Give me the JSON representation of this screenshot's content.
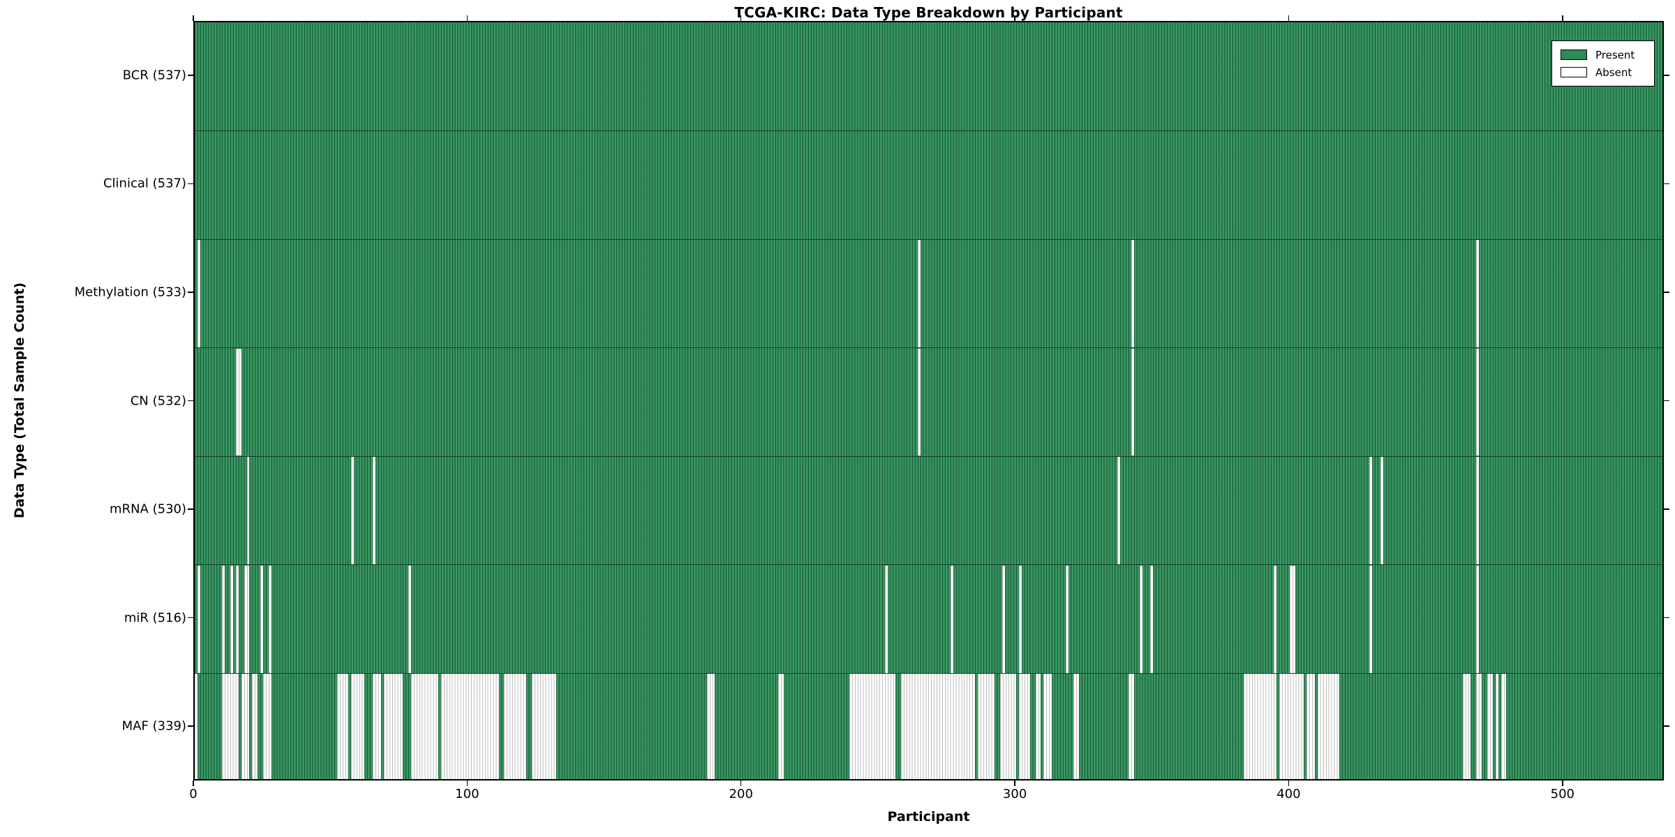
{
  "chart_data": {
    "type": "heatmap",
    "title": "TCGA-KIRC: Data Type Breakdown by Participant",
    "xlabel": "Participant",
    "ylabel": "Data Type (Total Sample Count)",
    "n_participants": 537,
    "x_ticks": [
      0,
      100,
      200,
      300,
      400,
      500
    ],
    "grid": "horizontal-row-separators",
    "legend_position": "upper right",
    "legend": [
      {
        "label": "Present",
        "color": "#2e8b57"
      },
      {
        "label": "Absent",
        "color": "#ffffff"
      }
    ],
    "cell_present_color": "#2e8b57",
    "cell_absent_color": "#ffffff",
    "rows": [
      {
        "label": "BCR (537)",
        "data_type": "BCR",
        "present_count": 537,
        "absent_ranges": []
      },
      {
        "label": "Clinical (537)",
        "data_type": "Clinical",
        "present_count": 537,
        "absent_ranges": []
      },
      {
        "label": "Methylation (533)",
        "data_type": "Methylation",
        "present_count": 533,
        "absent_ranges": [
          [
            1,
            1
          ],
          [
            264,
            264
          ],
          [
            342,
            342
          ],
          [
            468,
            468
          ]
        ]
      },
      {
        "label": "CN (532)",
        "data_type": "CN",
        "present_count": 532,
        "absent_ranges": [
          [
            15,
            16
          ],
          [
            264,
            264
          ],
          [
            342,
            342
          ],
          [
            468,
            468
          ]
        ]
      },
      {
        "label": "mRNA (530)",
        "data_type": "mRNA",
        "present_count": 530,
        "absent_ranges": [
          [
            19,
            19
          ],
          [
            57,
            57
          ],
          [
            65,
            65
          ],
          [
            337,
            337
          ],
          [
            429,
            429
          ],
          [
            433,
            433
          ],
          [
            468,
            468
          ]
        ]
      },
      {
        "label": "miR (516)",
        "data_type": "miR",
        "present_count": 516,
        "absent_ranges": [
          [
            1,
            1
          ],
          [
            10,
            10
          ],
          [
            13,
            13
          ],
          [
            15,
            15
          ],
          [
            18,
            18
          ],
          [
            19,
            19
          ],
          [
            24,
            24
          ],
          [
            27,
            27
          ],
          [
            78,
            78
          ],
          [
            252,
            252
          ],
          [
            276,
            276
          ],
          [
            295,
            295
          ],
          [
            301,
            301
          ],
          [
            318,
            318
          ],
          [
            345,
            345
          ],
          [
            349,
            349
          ],
          [
            394,
            394
          ],
          [
            400,
            401
          ],
          [
            429,
            429
          ],
          [
            468,
            468
          ]
        ]
      },
      {
        "label": "MAF (339)",
        "data_type": "MAF",
        "present_count": 339,
        "absent_ranges": [
          [
            0,
            0
          ],
          [
            10,
            15
          ],
          [
            17,
            19
          ],
          [
            21,
            22
          ],
          [
            25,
            27
          ],
          [
            52,
            55
          ],
          [
            57,
            61
          ],
          [
            65,
            67
          ],
          [
            69,
            75
          ],
          [
            79,
            88
          ],
          [
            90,
            110
          ],
          [
            113,
            120
          ],
          [
            123,
            131
          ],
          [
            187,
            189
          ],
          [
            213,
            214
          ],
          [
            239,
            255
          ],
          [
            258,
            284
          ],
          [
            286,
            291
          ],
          [
            294,
            299
          ],
          [
            301,
            304
          ],
          [
            307,
            308
          ],
          [
            310,
            312
          ],
          [
            321,
            322
          ],
          [
            341,
            342
          ],
          [
            383,
            394
          ],
          [
            396,
            404
          ],
          [
            406,
            408
          ],
          [
            410,
            417
          ],
          [
            463,
            465
          ],
          [
            468,
            469
          ],
          [
            472,
            473
          ],
          [
            475,
            475
          ],
          [
            477,
            478
          ]
        ]
      }
    ]
  }
}
